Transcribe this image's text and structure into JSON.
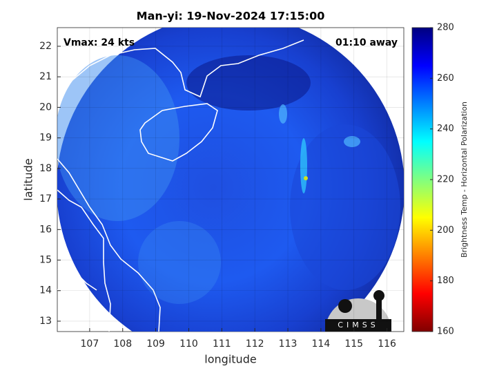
{
  "chart_data": {
    "type": "map",
    "title": "Man-yi: 19-Nov-2024 17:15:00",
    "annotations": [
      "Vmax: 24 kts",
      "01:10 away"
    ],
    "x_label": "longitude",
    "y_label": "latitude",
    "xlim": [
      106.02,
      116.51
    ],
    "xticks": [
      107,
      108,
      109,
      110,
      111,
      112,
      113,
      114,
      115,
      116
    ],
    "ylim": [
      12.66,
      22.61
    ],
    "yticks": [
      13,
      14,
      15,
      16,
      17,
      18,
      19,
      20,
      21,
      22
    ],
    "grid": true,
    "colorbar_label": "Brightness Temp - Horizontal Polarization",
    "clim": [
      160,
      280
    ],
    "cticks": [
      160,
      180,
      200,
      220,
      240,
      260,
      280
    ],
    "colormap": [
      "#800000",
      "#ff0000",
      "#ff8000",
      "#ffff00",
      "#80ff80",
      "#00ffff",
      "#0080ff",
      "#0000ff",
      "#000080"
    ],
    "logo_text": "CIMSS"
  }
}
